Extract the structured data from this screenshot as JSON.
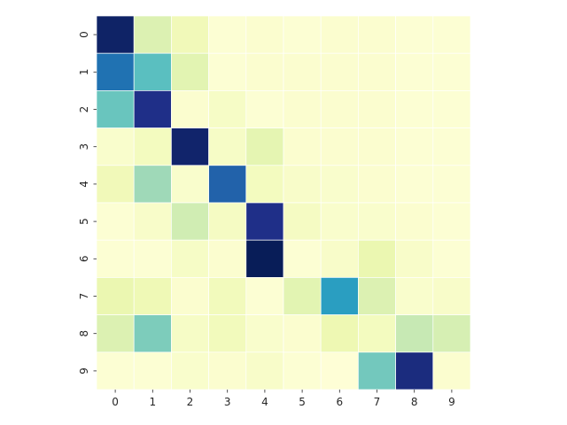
{
  "chart_data": {
    "type": "heatmap",
    "title": "",
    "xlabel": "",
    "ylabel": "",
    "x_tick_labels": [
      "0",
      "1",
      "2",
      "3",
      "4",
      "5",
      "6",
      "7",
      "8",
      "9"
    ],
    "y_tick_labels": [
      "0",
      "1",
      "2",
      "3",
      "4",
      "5",
      "6",
      "7",
      "8",
      "9"
    ],
    "colormap": "YlGnBu",
    "value_range": [
      0,
      1
    ],
    "colorbar": false,
    "grid_lines": "white",
    "values": [
      [
        0.97,
        0.18,
        0.1,
        0.02,
        0.03,
        0.02,
        0.03,
        0.03,
        0.02,
        0.02
      ],
      [
        0.7,
        0.45,
        0.16,
        0.02,
        0.03,
        0.03,
        0.03,
        0.03,
        0.02,
        0.02
      ],
      [
        0.42,
        0.9,
        0.03,
        0.06,
        0.02,
        0.03,
        0.03,
        0.03,
        0.02,
        0.02
      ],
      [
        0.04,
        0.08,
        0.96,
        0.06,
        0.15,
        0.03,
        0.03,
        0.03,
        0.02,
        0.02
      ],
      [
        0.1,
        0.32,
        0.04,
        0.74,
        0.08,
        0.05,
        0.04,
        0.03,
        0.02,
        0.02
      ],
      [
        0.02,
        0.05,
        0.22,
        0.07,
        0.9,
        0.07,
        0.04,
        0.04,
        0.03,
        0.02
      ],
      [
        0.02,
        0.02,
        0.06,
        0.03,
        1.0,
        0.02,
        0.05,
        0.13,
        0.05,
        0.02
      ],
      [
        0.13,
        0.11,
        0.03,
        0.09,
        0.02,
        0.16,
        0.58,
        0.18,
        0.04,
        0.05
      ],
      [
        0.18,
        0.38,
        0.06,
        0.09,
        0.04,
        0.03,
        0.12,
        0.08,
        0.25,
        0.2
      ],
      [
        0.02,
        0.02,
        0.04,
        0.03,
        0.05,
        0.02,
        0.01,
        0.4,
        0.92,
        0.03
      ]
    ]
  }
}
